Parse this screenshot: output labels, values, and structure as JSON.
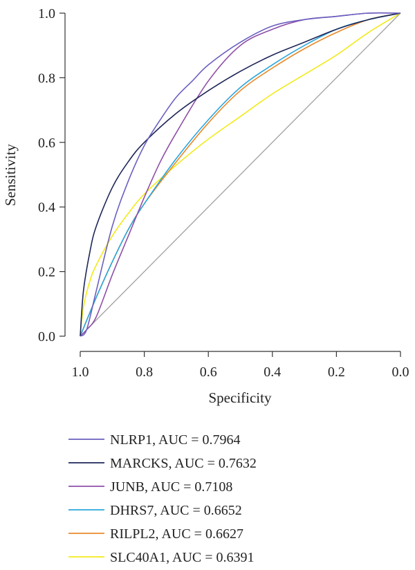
{
  "chart_data": {
    "type": "line",
    "title": "",
    "xlabel": "Specificity",
    "ylabel": "Sensitivity",
    "xlim": [
      1.0,
      0.0
    ],
    "ylim": [
      0.0,
      1.0
    ],
    "x_reversed": true,
    "grid": false,
    "legend_position": "bottom",
    "x_ticks": [
      "1.0",
      "0.8",
      "0.6",
      "0.4",
      "0.2",
      "0.0"
    ],
    "y_ticks": [
      "0.0",
      "0.2",
      "0.4",
      "0.6",
      "0.8",
      "1.0"
    ],
    "reference_line": {
      "from": [
        1.0,
        0.0
      ],
      "to": [
        0.0,
        1.0
      ],
      "color": "#a0a0a0"
    },
    "series": [
      {
        "name": "NLRP1, AUC = 0.7964",
        "color": "#6a5fbf",
        "x": [
          1.0,
          0.98,
          0.95,
          0.9,
          0.85,
          0.8,
          0.75,
          0.7,
          0.65,
          0.6,
          0.5,
          0.4,
          0.3,
          0.2,
          0.1,
          0.0
        ],
        "y": [
          0.0,
          0.02,
          0.14,
          0.34,
          0.48,
          0.59,
          0.67,
          0.74,
          0.79,
          0.84,
          0.91,
          0.96,
          0.98,
          0.99,
          1.0,
          1.0
        ]
      },
      {
        "name": "MARCKS, AUC = 0.7632",
        "color": "#1d2657",
        "x": [
          1.0,
          0.99,
          0.97,
          0.95,
          0.9,
          0.85,
          0.8,
          0.7,
          0.6,
          0.5,
          0.4,
          0.3,
          0.2,
          0.1,
          0.0
        ],
        "y": [
          0.0,
          0.14,
          0.26,
          0.34,
          0.46,
          0.54,
          0.6,
          0.69,
          0.76,
          0.82,
          0.87,
          0.91,
          0.95,
          0.98,
          1.0
        ]
      },
      {
        "name": "JUNB, AUC = 0.7108",
        "color": "#8e4fa8",
        "x": [
          1.0,
          0.98,
          0.95,
          0.9,
          0.85,
          0.8,
          0.75,
          0.7,
          0.6,
          0.5,
          0.4,
          0.3,
          0.2,
          0.1,
          0.0
        ],
        "y": [
          0.0,
          0.02,
          0.06,
          0.19,
          0.31,
          0.43,
          0.54,
          0.63,
          0.79,
          0.9,
          0.95,
          0.98,
          0.99,
          1.0,
          1.0
        ]
      },
      {
        "name": "DHRS7, AUC = 0.6652",
        "color": "#2aa6dd",
        "x": [
          1.0,
          0.95,
          0.9,
          0.85,
          0.8,
          0.7,
          0.6,
          0.5,
          0.4,
          0.3,
          0.2,
          0.1,
          0.0
        ],
        "y": [
          0.0,
          0.12,
          0.23,
          0.33,
          0.41,
          0.55,
          0.67,
          0.77,
          0.84,
          0.9,
          0.95,
          0.98,
          1.0
        ]
      },
      {
        "name": "RILPL2, AUC = 0.6627",
        "color": "#e8892a",
        "x": [
          1.0,
          0.95,
          0.9,
          0.85,
          0.8,
          0.7,
          0.6,
          0.5,
          0.4,
          0.3,
          0.2,
          0.1,
          0.0
        ],
        "y": [
          0.0,
          0.12,
          0.23,
          0.33,
          0.41,
          0.54,
          0.66,
          0.76,
          0.83,
          0.89,
          0.94,
          0.98,
          1.0
        ]
      },
      {
        "name": "SLC40A1, AUC = 0.6391",
        "color": "#f2ea1a",
        "x": [
          1.0,
          0.99,
          0.97,
          0.95,
          0.9,
          0.85,
          0.8,
          0.7,
          0.6,
          0.5,
          0.4,
          0.3,
          0.2,
          0.1,
          0.0
        ],
        "y": [
          0.0,
          0.09,
          0.17,
          0.22,
          0.31,
          0.38,
          0.44,
          0.53,
          0.61,
          0.68,
          0.75,
          0.81,
          0.87,
          0.94,
          1.0
        ]
      }
    ]
  }
}
